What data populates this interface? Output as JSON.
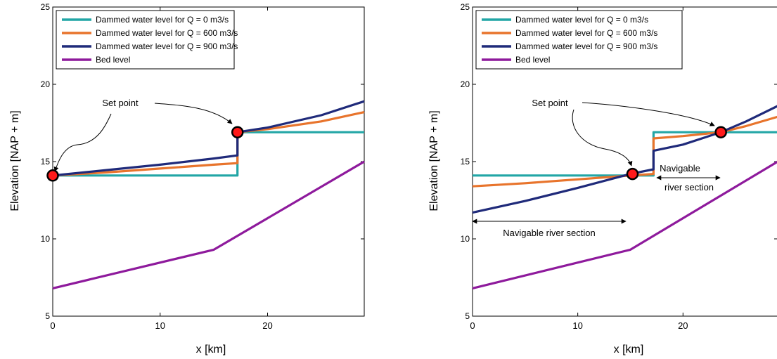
{
  "chart_data": [
    {
      "type": "line",
      "ylabel": "Elevation [NAP + m]",
      "xlabel": "x [km]",
      "xlim": [
        0,
        29
      ],
      "ylim": [
        5,
        25
      ],
      "xticks": [
        0,
        10,
        20
      ],
      "yticks": [
        5,
        10,
        15,
        20,
        25
      ],
      "legend_position": "top-left",
      "series": [
        {
          "name": "Dammed water level for Q = 0 m3/s",
          "color": "#22a6a6",
          "x": [
            0,
            17.2,
            17.2,
            29
          ],
          "y": [
            14.1,
            14.1,
            16.9,
            16.9
          ]
        },
        {
          "name": "Dammed water level for Q = 600 m3/s",
          "color": "#e8742c",
          "x": [
            0,
            5,
            10,
            15,
            17.2,
            17.2,
            20,
            25,
            29
          ],
          "y": [
            14.1,
            14.3,
            14.55,
            14.8,
            14.9,
            16.9,
            17.1,
            17.6,
            18.2
          ]
        },
        {
          "name": "Dammed water level for Q = 900 m3/s",
          "color": "#1f2a7a",
          "x": [
            0,
            5,
            10,
            15,
            17.2,
            17.2,
            20,
            25,
            29
          ],
          "y": [
            14.1,
            14.45,
            14.8,
            15.2,
            15.4,
            16.9,
            17.2,
            18.0,
            18.9
          ]
        },
        {
          "name": "Bed level",
          "color": "#8e1a9c",
          "x": [
            0,
            15,
            29
          ],
          "y": [
            6.8,
            9.3,
            15.0
          ]
        }
      ],
      "markers": [
        {
          "x": 0,
          "y": 14.1
        },
        {
          "x": 17.2,
          "y": 16.9
        }
      ],
      "annotations": [
        {
          "text": "Set point",
          "x": 6.2,
          "y": 19.3
        }
      ]
    },
    {
      "type": "line",
      "ylabel": "Elevation [NAP + m]",
      "xlabel": "x [km]",
      "xlim": [
        0,
        29
      ],
      "ylim": [
        5,
        25
      ],
      "xticks": [
        0,
        10,
        20
      ],
      "yticks": [
        5,
        10,
        15,
        20,
        25
      ],
      "legend_position": "top-left",
      "series": [
        {
          "name": "Dammed water level for Q = 0 m3/s",
          "color": "#22a6a6",
          "x": [
            0,
            17.2,
            17.2,
            29
          ],
          "y": [
            14.1,
            14.1,
            16.9,
            16.9
          ]
        },
        {
          "name": "Dammed water level for Q = 600 m3/s",
          "color": "#e8742c",
          "x": [
            0,
            5,
            10,
            15,
            17.2,
            17.2,
            20,
            23.6,
            26,
            29
          ],
          "y": [
            13.4,
            13.6,
            13.85,
            14.1,
            14.2,
            16.5,
            16.65,
            16.9,
            17.3,
            17.9
          ]
        },
        {
          "name": "Dammed water level for Q = 900 m3/s",
          "color": "#1f2a7a",
          "x": [
            0,
            5,
            10,
            15,
            17.2,
            17.2,
            20,
            23.6,
            26,
            29
          ],
          "y": [
            11.7,
            12.45,
            13.3,
            14.2,
            14.5,
            15.7,
            16.1,
            16.9,
            17.6,
            18.6
          ]
        },
        {
          "name": "Bed level",
          "color": "#8e1a9c",
          "x": [
            0,
            15,
            29
          ],
          "y": [
            6.8,
            9.3,
            15.0
          ]
        }
      ],
      "markers": [
        {
          "x": 15.2,
          "y": 14.2
        },
        {
          "x": 23.6,
          "y": 16.9
        }
      ],
      "annotations": [
        {
          "text": "Set point",
          "x": 9.5,
          "y": 19.3
        },
        {
          "text": "Navigable river section",
          "x": 7.5,
          "y": 10.35
        },
        {
          "text": "Navigable",
          "x": 20.3,
          "y": 14.6
        },
        {
          "text": "river section",
          "x": 20.9,
          "y": 13.1
        }
      ]
    }
  ]
}
